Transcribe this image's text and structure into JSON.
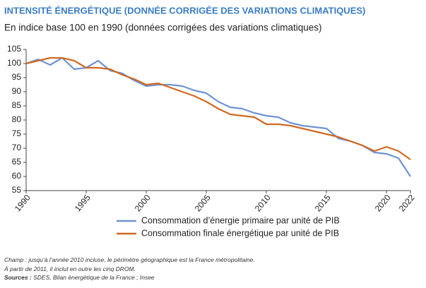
{
  "chart_data": {
    "type": "line",
    "title": "INTENSITÉ ÉNERGÉTIQUE (DONNÉE CORRIGÉE DES VARIATIONS CLIMATIQUES)",
    "subtitle": "En indice base 100 en 1990 (données corrigées des variations climatiques)",
    "x": [
      1990,
      1991,
      1992,
      1993,
      1994,
      1995,
      1996,
      1997,
      1998,
      1999,
      2000,
      2001,
      2002,
      2003,
      2004,
      2005,
      2006,
      2007,
      2008,
      2009,
      2010,
      2011,
      2012,
      2013,
      2014,
      2015,
      2016,
      2017,
      2018,
      2019,
      2020,
      2021,
      2022
    ],
    "series": [
      {
        "name": "Consommation d’énergie primaire par unité de PIB",
        "color": "#6f93d1",
        "values": [
          100,
          101.5,
          99.5,
          102,
          98,
          98.5,
          101,
          97.5,
          96.5,
          94,
          92,
          92.5,
          92.5,
          92,
          90.5,
          89.5,
          86.5,
          84.5,
          84,
          82.5,
          81.5,
          81,
          79,
          78,
          77.5,
          77,
          73.5,
          72.5,
          71,
          68.5,
          68,
          66.5,
          60
        ]
      },
      {
        "name": "Consommation finale énergétique par unité de PIB",
        "color": "#cf6a22",
        "values": [
          100,
          101,
          102,
          102,
          101,
          98.5,
          98.5,
          98,
          96,
          94.5,
          92.5,
          93,
          91.5,
          90,
          88.5,
          86.5,
          84,
          82,
          81.5,
          81,
          78.5,
          78.5,
          78,
          77,
          76,
          75,
          74,
          72.5,
          71,
          69,
          70.5,
          69,
          66
        ]
      }
    ],
    "xlim": [
      1990,
      2022
    ],
    "xticks": [
      1990,
      1995,
      2000,
      2005,
      2010,
      2015,
      2020,
      2022
    ],
    "ylim": [
      55,
      105
    ],
    "yticks": [
      55,
      60,
      65,
      70,
      75,
      80,
      85,
      90,
      95,
      100,
      105
    ],
    "notes": [
      "Champ : jusqu’à l’année 2010 incluse, le périmètre géographique est la France métropolitaine.",
      "À partir de 2011, il inclut en outre les cinq DROM."
    ],
    "source_label": "Sources :",
    "source": "SDES, Bilan énergétique de la France ; Insee"
  }
}
